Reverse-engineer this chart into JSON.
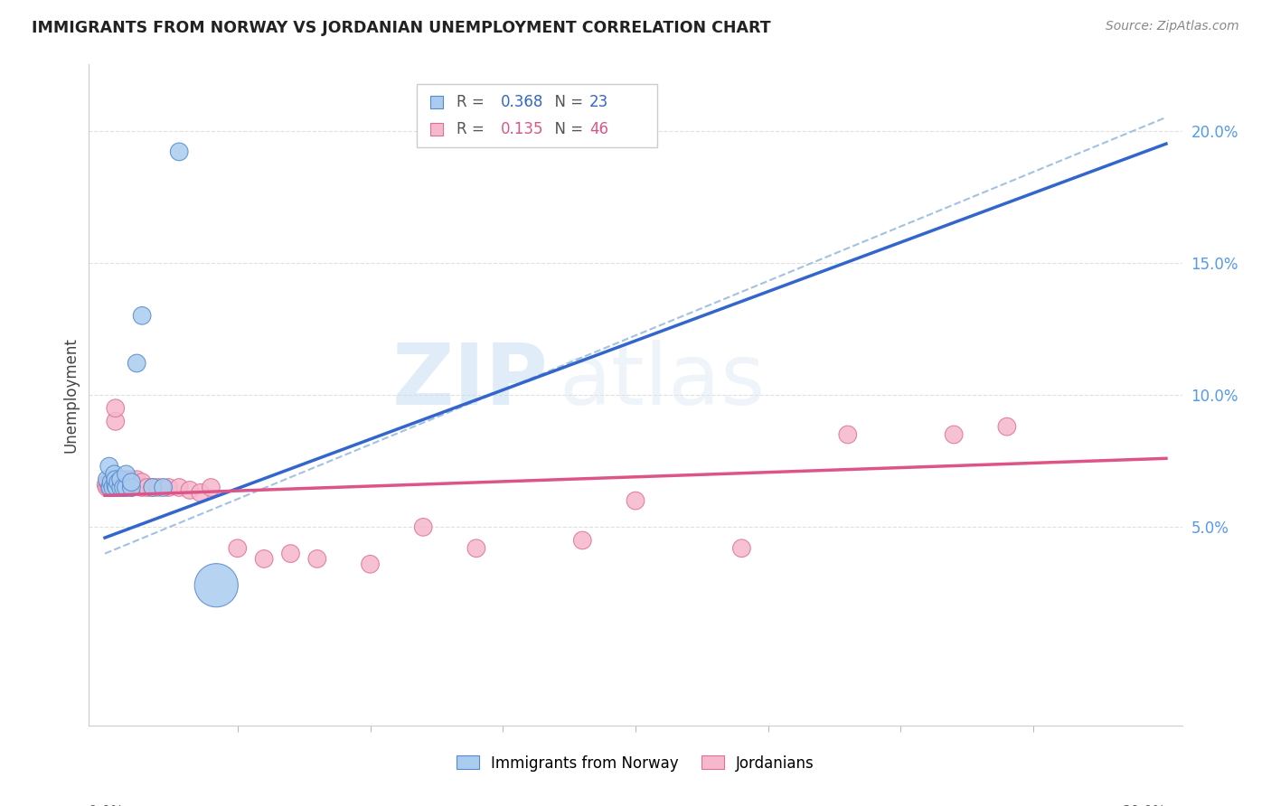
{
  "title": "IMMIGRANTS FROM NORWAY VS JORDANIAN UNEMPLOYMENT CORRELATION CHART",
  "source": "Source: ZipAtlas.com",
  "ylabel": "Unemployment",
  "watermark_zip": "ZIP",
  "watermark_atlas": "atlas",
  "legend_norway": "Immigrants from Norway",
  "legend_jordanians": "Jordanians",
  "norway_R": "0.368",
  "norway_N": "23",
  "jordan_R": "0.135",
  "jordan_N": "46",
  "norway_color": "#aaccf0",
  "norway_edge_color": "#5588cc",
  "norway_line_color": "#3366cc",
  "jordan_color": "#f5b8cc",
  "jordan_edge_color": "#e07090",
  "jordan_line_color": "#dd5588",
  "dashed_color": "#99bbdd",
  "background_color": "#ffffff",
  "grid_color": "#e0e0e0",
  "ytick_color": "#5599ee",
  "norway_x": [
    0.0004,
    0.0008,
    0.001,
    0.0012,
    0.0015,
    0.0018,
    0.002,
    0.002,
    0.0022,
    0.0025,
    0.003,
    0.003,
    0.0035,
    0.004,
    0.004,
    0.005,
    0.005,
    0.006,
    0.007,
    0.009,
    0.011,
    0.014,
    0.021
  ],
  "norway_y": [
    0.068,
    0.073,
    0.065,
    0.067,
    0.065,
    0.07,
    0.066,
    0.068,
    0.065,
    0.067,
    0.065,
    0.068,
    0.065,
    0.065,
    0.07,
    0.065,
    0.067,
    0.112,
    0.13,
    0.065,
    0.065,
    0.192,
    0.028
  ],
  "norway_sizes": [
    200,
    200,
    200,
    200,
    200,
    200,
    200,
    200,
    200,
    200,
    200,
    200,
    200,
    200,
    200,
    200,
    200,
    200,
    200,
    200,
    200,
    200,
    1200
  ],
  "jordan_x": [
    0.0002,
    0.0004,
    0.0006,
    0.0008,
    0.001,
    0.001,
    0.0012,
    0.0015,
    0.0018,
    0.002,
    0.002,
    0.0022,
    0.0025,
    0.003,
    0.003,
    0.003,
    0.0035,
    0.004,
    0.004,
    0.005,
    0.005,
    0.006,
    0.006,
    0.007,
    0.007,
    0.008,
    0.009,
    0.01,
    0.012,
    0.014,
    0.016,
    0.018,
    0.02,
    0.025,
    0.03,
    0.035,
    0.04,
    0.05,
    0.06,
    0.07,
    0.09,
    0.1,
    0.12,
    0.14,
    0.16,
    0.17
  ],
  "jordan_y": [
    0.066,
    0.065,
    0.067,
    0.065,
    0.066,
    0.068,
    0.065,
    0.066,
    0.065,
    0.09,
    0.095,
    0.065,
    0.068,
    0.065,
    0.068,
    0.065,
    0.067,
    0.065,
    0.068,
    0.065,
    0.068,
    0.066,
    0.068,
    0.065,
    0.067,
    0.065,
    0.065,
    0.065,
    0.065,
    0.065,
    0.064,
    0.063,
    0.065,
    0.042,
    0.038,
    0.04,
    0.038,
    0.036,
    0.05,
    0.042,
    0.045,
    0.06,
    0.042,
    0.085,
    0.085,
    0.088
  ],
  "jordan_sizes": [
    200,
    200,
    200,
    200,
    200,
    200,
    200,
    200,
    200,
    200,
    200,
    200,
    200,
    200,
    200,
    200,
    200,
    200,
    200,
    200,
    200,
    200,
    200,
    200,
    200,
    200,
    200,
    200,
    200,
    200,
    200,
    200,
    200,
    200,
    200,
    200,
    200,
    200,
    200,
    200,
    200,
    200,
    200,
    200,
    200,
    200
  ],
  "xlim": [
    0.0,
    0.2
  ],
  "ylim": [
    -0.025,
    0.225
  ],
  "xticks_minor": [
    0.025,
    0.05,
    0.075,
    0.1,
    0.125,
    0.15,
    0.175
  ],
  "yticks": [
    0.05,
    0.1,
    0.15,
    0.2
  ],
  "ytick_labels": [
    "5.0%",
    "10.0%",
    "15.0%",
    "20.0%"
  ]
}
